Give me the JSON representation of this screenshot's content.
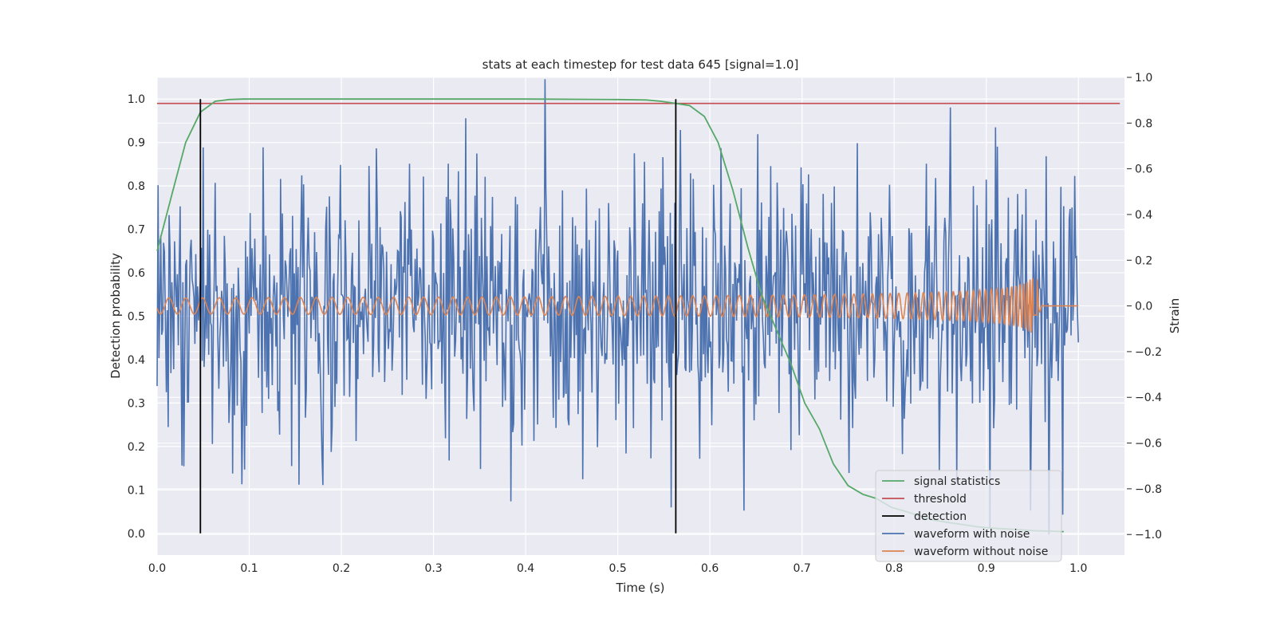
{
  "chart_data": {
    "type": "line",
    "title": "stats at each timestep for test data 645 [signal=1.0]",
    "xlabel": "Time (s)",
    "ylabel": "Detection probability",
    "y2label": "Strain",
    "xlim": [
      0.0,
      1.05
    ],
    "ylim": [
      -0.05,
      1.05
    ],
    "y2lim": [
      -1.09,
      1.0
    ],
    "x_ticks": [
      "0.0",
      "0.1",
      "0.2",
      "0.3",
      "0.4",
      "0.5",
      "0.6",
      "0.7",
      "0.8",
      "0.9",
      "1.0"
    ],
    "y_ticks": [
      "0.0",
      "0.1",
      "0.2",
      "0.3",
      "0.4",
      "0.5",
      "0.6",
      "0.7",
      "0.8",
      "0.9",
      "1.0"
    ],
    "y2_ticks": [
      "−1.0",
      "−0.8",
      "−0.6",
      "−0.4",
      "−0.2",
      "0.0",
      "0.2",
      "0.4",
      "0.6",
      "0.8",
      "1.0"
    ],
    "grid": true,
    "legend_position": "lower right",
    "series": [
      {
        "name": "signal statistics",
        "color": "#55a868",
        "axis": "left",
        "x": [
          0.0,
          0.016,
          0.031,
          0.047,
          0.063,
          0.078,
          0.094,
          0.109,
          0.125,
          0.2,
          0.3,
          0.4,
          0.5,
          0.531,
          0.547,
          0.563,
          0.578,
          0.594,
          0.609,
          0.625,
          0.641,
          0.656,
          0.672,
          0.688,
          0.703,
          0.719,
          0.734,
          0.75,
          0.766,
          0.781,
          0.797,
          0.813,
          0.828,
          0.844,
          0.859,
          0.875,
          0.891,
          0.906,
          0.922,
          0.938,
          0.953,
          0.969,
          0.984
        ],
        "y": [
          0.65,
          0.78,
          0.9,
          0.97,
          0.995,
          0.999,
          1.0,
          1.0,
          1.0,
          1.0,
          1.0,
          1.0,
          0.999,
          0.998,
          0.995,
          0.99,
          0.985,
          0.96,
          0.9,
          0.79,
          0.66,
          0.55,
          0.47,
          0.39,
          0.3,
          0.24,
          0.16,
          0.11,
          0.09,
          0.08,
          0.06,
          0.05,
          0.04,
          0.03,
          0.025,
          0.02,
          0.015,
          0.012,
          0.01,
          0.008,
          0.006,
          0.005,
          0.004
        ]
      },
      {
        "name": "threshold",
        "color": "#c44e52",
        "axis": "left",
        "x": [
          0.0,
          1.045
        ],
        "y": [
          0.99,
          0.99
        ]
      },
      {
        "name": "detection",
        "color": "#000000",
        "axis": "left",
        "x": [
          0.047,
          0.563
        ],
        "y_range": [
          0.0,
          1.0
        ]
      },
      {
        "name": "waveform with noise",
        "color": "#4c72b0",
        "axis": "right",
        "amplitude_std": 0.3,
        "x_range": [
          0.0,
          1.0
        ],
        "y_range": [
          -1.0,
          1.0
        ]
      },
      {
        "name": "waveform without noise",
        "color": "#dd8452",
        "axis": "right",
        "x_range": [
          0.0,
          1.0
        ],
        "merger_time": 0.955,
        "amplitude_start": 0.035,
        "amplitude_peak": 0.13,
        "cycles": 80
      }
    ]
  }
}
